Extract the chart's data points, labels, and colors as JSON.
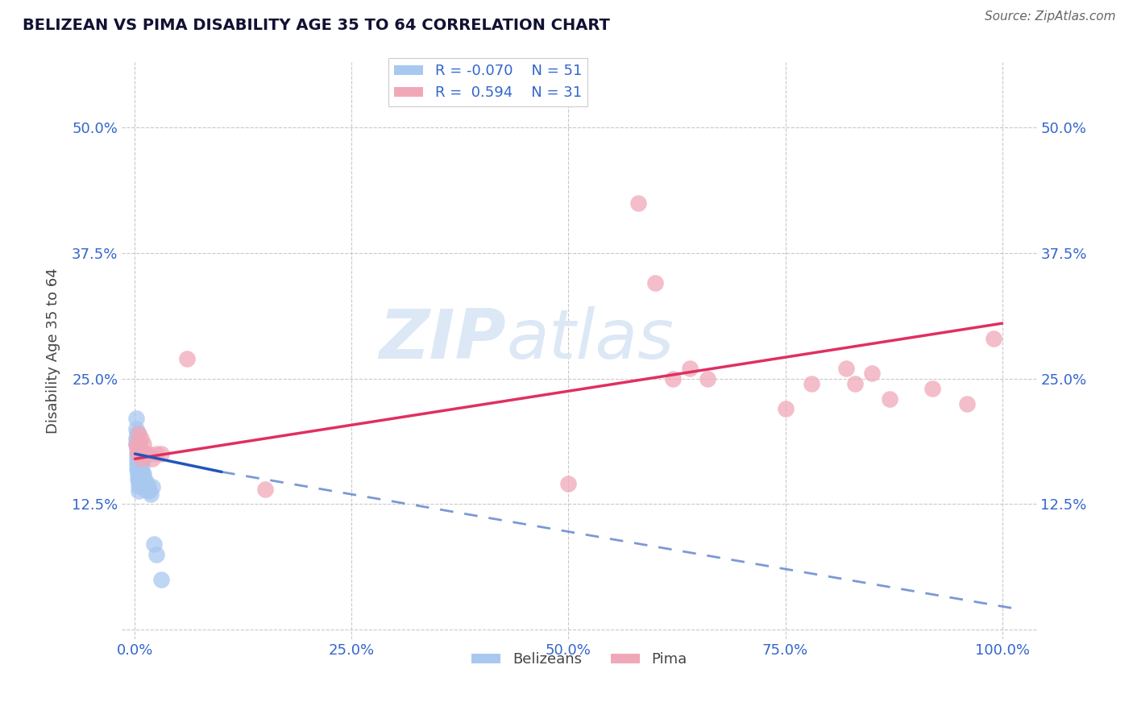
{
  "title": "BELIZEAN VS PIMA DISABILITY AGE 35 TO 64 CORRELATION CHART",
  "source": "Source: ZipAtlas.com",
  "ylabel": "Disability Age 35 to 64",
  "xlabel": "",
  "xlim": [
    -0.015,
    1.04
  ],
  "ylim": [
    -0.01,
    0.565
  ],
  "xticks": [
    0.0,
    0.25,
    0.5,
    0.75,
    1.0
  ],
  "xtick_labels": [
    "0.0%",
    "25.0%",
    "50.0%",
    "75.0%",
    "100.0%"
  ],
  "yticks": [
    0.0,
    0.125,
    0.25,
    0.375,
    0.5
  ],
  "ytick_labels": [
    "",
    "12.5%",
    "25.0%",
    "37.5%",
    "50.0%"
  ],
  "belizean_R": -0.07,
  "belizean_N": 51,
  "pima_R": 0.594,
  "pima_N": 31,
  "belizean_color": "#a8c8f0",
  "pima_color": "#f0a8b8",
  "belizean_line_color": "#2255bb",
  "pima_line_color": "#e03060",
  "watermark_zip": "ZIP",
  "watermark_atlas": "atlas",
  "watermark_color": "#dce8f5",
  "background_color": "#ffffff",
  "belizean_x": [
    0.001,
    0.001,
    0.001,
    0.001,
    0.002,
    0.002,
    0.002,
    0.002,
    0.002,
    0.002,
    0.002,
    0.003,
    0.003,
    0.003,
    0.003,
    0.003,
    0.003,
    0.003,
    0.003,
    0.004,
    0.004,
    0.004,
    0.004,
    0.004,
    0.004,
    0.004,
    0.005,
    0.005,
    0.005,
    0.005,
    0.006,
    0.006,
    0.006,
    0.007,
    0.007,
    0.008,
    0.008,
    0.009,
    0.01,
    0.01,
    0.011,
    0.012,
    0.013,
    0.014,
    0.015,
    0.016,
    0.018,
    0.02,
    0.022,
    0.025,
    0.03
  ],
  "belizean_y": [
    0.19,
    0.2,
    0.21,
    0.185,
    0.195,
    0.19,
    0.185,
    0.175,
    0.17,
    0.165,
    0.16,
    0.195,
    0.185,
    0.175,
    0.17,
    0.165,
    0.16,
    0.155,
    0.15,
    0.19,
    0.175,
    0.165,
    0.155,
    0.148,
    0.143,
    0.138,
    0.172,
    0.16,
    0.152,
    0.145,
    0.178,
    0.165,
    0.155,
    0.168,
    0.155,
    0.162,
    0.15,
    0.155,
    0.17,
    0.155,
    0.148,
    0.14,
    0.148,
    0.14,
    0.142,
    0.138,
    0.135,
    0.142,
    0.085,
    0.075,
    0.05
  ],
  "pima_x": [
    0.001,
    0.002,
    0.003,
    0.004,
    0.005,
    0.006,
    0.007,
    0.008,
    0.01,
    0.012,
    0.015,
    0.02,
    0.025,
    0.03,
    0.06,
    0.15,
    0.5,
    0.58,
    0.6,
    0.62,
    0.64,
    0.66,
    0.75,
    0.78,
    0.82,
    0.83,
    0.85,
    0.87,
    0.92,
    0.96,
    0.99
  ],
  "pima_y": [
    0.185,
    0.18,
    0.175,
    0.195,
    0.185,
    0.175,
    0.19,
    0.17,
    0.185,
    0.175,
    0.175,
    0.17,
    0.175,
    0.175,
    0.27,
    0.14,
    0.145,
    0.425,
    0.345,
    0.25,
    0.26,
    0.25,
    0.22,
    0.245,
    0.26,
    0.245,
    0.255,
    0.23,
    0.24,
    0.225,
    0.29
  ],
  "pima_line_x0": 0.0,
  "pima_line_y0": 0.17,
  "pima_line_x1": 1.0,
  "pima_line_y1": 0.305,
  "bel_line_solid_x0": 0.0,
  "bel_line_solid_y0": 0.175,
  "bel_line_solid_x1": 0.1,
  "bel_line_solid_y1": 0.157,
  "bel_line_dash_x0": 0.1,
  "bel_line_dash_y0": 0.157,
  "bel_line_dash_x1": 1.02,
  "bel_line_dash_y1": 0.02
}
